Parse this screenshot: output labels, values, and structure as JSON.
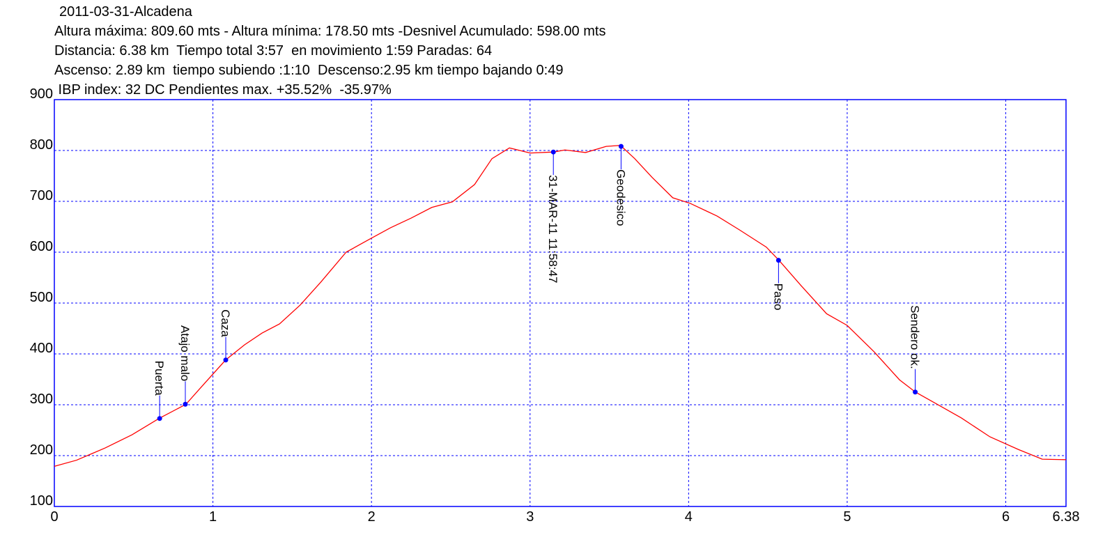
{
  "chart_data": {
    "type": "line",
    "title": "2011-03-31-Alcadena",
    "subtitles": [
      "Altura máxima: 809.60 mts - Altura mínima: 178.50 mts -Desnivel Acumulado: 598.00 mts",
      "Distancia: 6.38 km  Tiempo total 3:57  en movimiento 1:59 Paradas: 64",
      "Ascenso: 2.89 km  tiempo subiendo :1:10  Descenso:2.95 km tiempo bajando 0:49",
      " IBP index: 32 DC Pendientes max. +35.52%  -35.97%"
    ],
    "x": [
      0,
      0.14,
      0.32,
      0.49,
      0.66,
      0.83,
      0.93,
      1.08,
      1.2,
      1.31,
      1.42,
      1.55,
      1.68,
      1.84,
      1.99,
      2.12,
      2.25,
      2.38,
      2.51,
      2.65,
      2.76,
      2.87,
      3.0,
      3.15,
      3.22,
      3.35,
      3.48,
      3.57,
      3.66,
      3.77,
      3.9,
      4.01,
      4.18,
      4.32,
      4.49,
      4.57,
      4.71,
      4.87,
      5.0,
      5.17,
      5.33,
      5.43,
      5.55,
      5.72,
      5.9,
      6.08,
      6.23,
      6.38
    ],
    "series": [
      {
        "color": "#ff0000",
        "values": [
          179,
          191,
          215,
          241,
          273,
          301,
          336,
          388,
          418,
          441,
          459,
          496,
          541,
          600,
          626,
          648,
          667,
          688,
          699,
          733,
          784,
          805,
          795,
          797,
          801,
          796,
          808,
          810,
          784,
          747,
          707,
          696,
          671,
          644,
          610,
          584,
          534,
          479,
          456,
          404,
          349,
          325,
          304,
          274,
          237,
          212,
          193,
          192
        ]
      }
    ],
    "waypoints": {
      "color": "#0000ff",
      "names": [
        "Puerta",
        "Atajo malo",
        "Caza",
        "31-MAR-11 11:58:47",
        "Geodesico",
        "Paso",
        "Sendero ok."
      ],
      "x": [
        0.664,
        0.826,
        1.081,
        3.147,
        3.574,
        4.567,
        5.429
      ],
      "values": [
        273,
        301,
        388,
        797,
        808,
        584,
        325
      ]
    },
    "xlim": [
      0,
      6.38
    ],
    "ylim": [
      100,
      900
    ],
    "xticks": [
      0,
      1,
      2,
      3,
      4,
      5,
      6,
      6.38
    ],
    "yticks": [
      100,
      200,
      300,
      400,
      500,
      600,
      700,
      800,
      900
    ],
    "grid": true,
    "frame_color": "#0000ff"
  }
}
